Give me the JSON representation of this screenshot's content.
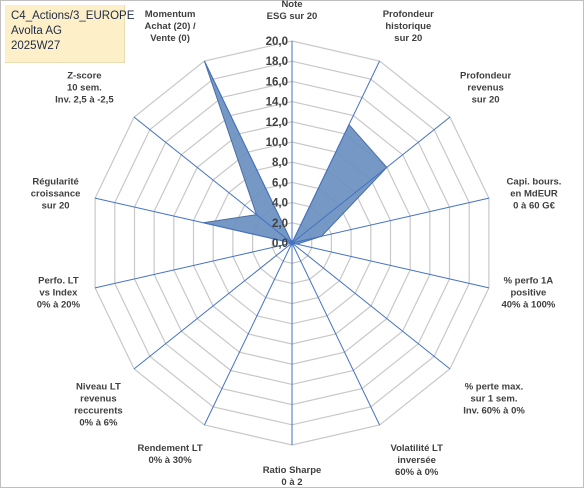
{
  "info": {
    "line1": "C4_Actions/3_EUROPE",
    "line2": "Avolta AG",
    "line3": "2025W27"
  },
  "chart_data": {
    "type": "radar",
    "rmin": 0,
    "rmax": 20,
    "step": 2,
    "tick_labels": [
      "0,0",
      "2,0",
      "4,0",
      "6,0",
      "8,0",
      "10,0",
      "12,0",
      "14,0",
      "16,0",
      "18,0",
      "20,0"
    ],
    "axes": [
      [
        "Note",
        "ESG sur 20"
      ],
      [
        "Profondeur",
        "historique",
        "sur 20"
      ],
      [
        "Profondeur",
        "revenus",
        "sur 20"
      ],
      [
        "Capi. bours.",
        "en MdEUR",
        "0 à 60 G€"
      ],
      [
        "% perfo 1A",
        "positive",
        "40% à 100%"
      ],
      [
        "% perte max.",
        "sur 1 sem.",
        "Inv. 60% à 0%"
      ],
      [
        "Volatilité LT",
        "inversée",
        "60% à 0%"
      ],
      [
        "Ratio Sharpe",
        "0 à 2"
      ],
      [
        "Rendement LT",
        "0% à 30%"
      ],
      [
        "Niveau LT",
        "revenus",
        "reccurents",
        "0% à 6%"
      ],
      [
        "Perfo. LT",
        "vs Index",
        "0% à 20%"
      ],
      [
        "Régularité",
        "croissance",
        "sur 20"
      ],
      [
        "Z-score",
        "10 sem.",
        "Inv. 2,5 à -2,5"
      ],
      [
        "Momentum",
        "Achat (20) /",
        "Vente (0)"
      ]
    ],
    "series": [
      {
        "values": [
          0,
          13,
          12,
          3,
          0.5,
          0,
          0,
          0,
          0,
          0,
          0,
          9,
          4.5,
          20
        ]
      }
    ],
    "fill_color": "#6a8fbf",
    "edge_color": "#4a6fa5",
    "grid_color": "#c8c8c8",
    "spoke_color": "#4472c4"
  }
}
